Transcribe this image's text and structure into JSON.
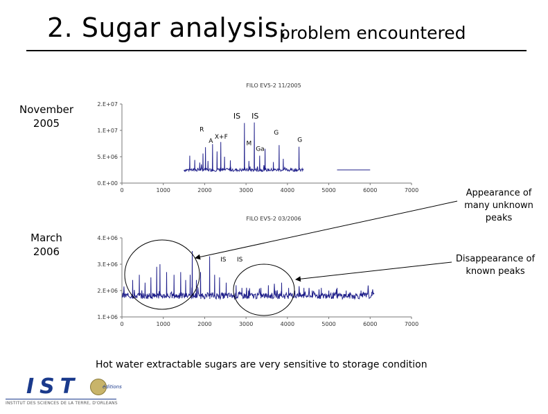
{
  "slide": {
    "title": "2. Sugar analysis:",
    "subtitle": "problem encountered",
    "date_top": "November\n2005",
    "date_bottom": "March\n2006",
    "annotation_right_top": "Appearance of\nmany unknown\npeaks",
    "annotation_right_bottom": "Disappearance of\nknown peaks",
    "footer_note": "Hot water extractable sugars are very sensitive to storage condition",
    "logo_text": "IST",
    "logo_badge_text": "éditions",
    "logo_subtitle": "INSTITUT DES SCIENCES DE LA TERRE, D'ORLEANS"
  },
  "colors": {
    "trace": "#1f1f8a",
    "axis": "#777777",
    "highlight": "#000000"
  },
  "chart_data": [
    {
      "type": "line",
      "title": "FILO EV5-2 11/2005",
      "xlim": [
        0,
        7000
      ],
      "ylim": [
        0,
        20000000
      ],
      "x_ticks": [
        0,
        1000,
        2000,
        3000,
        4000,
        5000,
        6000,
        7000
      ],
      "y_ticks": [
        0,
        5000000,
        10000000,
        20000000
      ],
      "y_tick_labels": [
        "0.E+00",
        "5.E+06",
        "1.E+07",
        "2.E+07"
      ],
      "x_tick_labels": [
        "0",
        "1000",
        "2000",
        "3000",
        "4000",
        "5000",
        "6000",
        "7000"
      ],
      "baseline": 2500000,
      "peaks": [
        {
          "x": 1640,
          "y": 5200000
        },
        {
          "x": 1760,
          "y": 4400000
        },
        {
          "x": 1880,
          "y": 3900000
        },
        {
          "x": 1960,
          "y": 5600000
        },
        {
          "x": 2020,
          "y": 6800000
        },
        {
          "x": 2080,
          "y": 4200000
        },
        {
          "x": 2190,
          "y": 7400000
        },
        {
          "x": 2300,
          "y": 6000000
        },
        {
          "x": 2390,
          "y": 7800000
        },
        {
          "x": 2480,
          "y": 5000000
        },
        {
          "x": 2620,
          "y": 4300000
        },
        {
          "x": 2960,
          "y": 12800000
        },
        {
          "x": 3070,
          "y": 4200000
        },
        {
          "x": 3200,
          "y": 13000000
        },
        {
          "x": 3330,
          "y": 5200000
        },
        {
          "x": 3460,
          "y": 6500000
        },
        {
          "x": 3660,
          "y": 4000000
        },
        {
          "x": 3800,
          "y": 7200000
        },
        {
          "x": 3900,
          "y": 4600000
        },
        {
          "x": 4280,
          "y": 6900000
        }
      ],
      "labels": [
        {
          "text": "IS",
          "x": 2780,
          "y": 14500000
        },
        {
          "text": "IS",
          "x": 3220,
          "y": 14500000
        },
        {
          "text": "R",
          "x": 1930,
          "y": 9800000
        },
        {
          "text": "A",
          "x": 2150,
          "y": 7600000
        },
        {
          "text": "X+F",
          "x": 2400,
          "y": 8400000
        },
        {
          "text": "M",
          "x": 3070,
          "y": 7200000
        },
        {
          "text": "G",
          "x": 3730,
          "y": 9200000
        },
        {
          "text": "Ga",
          "x": 3340,
          "y": 6100000
        },
        {
          "text": "G",
          "x": 4300,
          "y": 7800000
        }
      ]
    },
    {
      "type": "line",
      "title": "FILO EV5-2 03/2006",
      "xlim": [
        0,
        7000
      ],
      "ylim": [
        1000000,
        4000000
      ],
      "x_ticks": [
        0,
        1000,
        2000,
        3000,
        4000,
        5000,
        6000,
        7000
      ],
      "y_ticks": [
        1000000,
        2000000,
        3000000,
        4000000
      ],
      "y_tick_labels": [
        "1.E+06",
        "2.E+06",
        "3.E+06",
        "4.E+06"
      ],
      "x_tick_labels": [
        "0",
        "1000",
        "2000",
        "3000",
        "4000",
        "5000",
        "6000",
        "7000"
      ],
      "baseline": 1800000,
      "peaks": [
        {
          "x": 260,
          "y": 2400000
        },
        {
          "x": 420,
          "y": 2600000
        },
        {
          "x": 560,
          "y": 2300000
        },
        {
          "x": 700,
          "y": 2500000
        },
        {
          "x": 840,
          "y": 2900000
        },
        {
          "x": 920,
          "y": 3000000
        },
        {
          "x": 1080,
          "y": 2700000
        },
        {
          "x": 1260,
          "y": 2600000
        },
        {
          "x": 1420,
          "y": 2700000
        },
        {
          "x": 1540,
          "y": 2400000
        },
        {
          "x": 1650,
          "y": 2600000
        },
        {
          "x": 1700,
          "y": 3500000
        },
        {
          "x": 1800,
          "y": 2400000
        },
        {
          "x": 1900,
          "y": 2700000
        },
        {
          "x": 2120,
          "y": 3300000
        },
        {
          "x": 2240,
          "y": 2600000
        },
        {
          "x": 2360,
          "y": 2500000
        },
        {
          "x": 2520,
          "y": 2300000
        },
        {
          "x": 2760,
          "y": 2200000
        },
        {
          "x": 2900,
          "y": 2100000
        },
        {
          "x": 3060,
          "y": 2000000
        },
        {
          "x": 3360,
          "y": 2100000
        },
        {
          "x": 3540,
          "y": 2200000
        },
        {
          "x": 3720,
          "y": 2000000
        },
        {
          "x": 3860,
          "y": 2300000
        },
        {
          "x": 4030,
          "y": 2100000
        },
        {
          "x": 4180,
          "y": 2000000
        },
        {
          "x": 4400,
          "y": 2100000
        },
        {
          "x": 4600,
          "y": 2000000
        },
        {
          "x": 4820,
          "y": 2100000
        },
        {
          "x": 5000,
          "y": 2000000
        },
        {
          "x": 5200,
          "y": 2100000
        },
        {
          "x": 5420,
          "y": 2000000
        },
        {
          "x": 5780,
          "y": 2000000
        },
        {
          "x": 6040,
          "y": 1950000
        }
      ],
      "labels": [
        {
          "text": "IS",
          "x": 2450,
          "y": 3100000
        },
        {
          "text": "IS",
          "x": 2850,
          "y": 3100000
        }
      ]
    }
  ]
}
